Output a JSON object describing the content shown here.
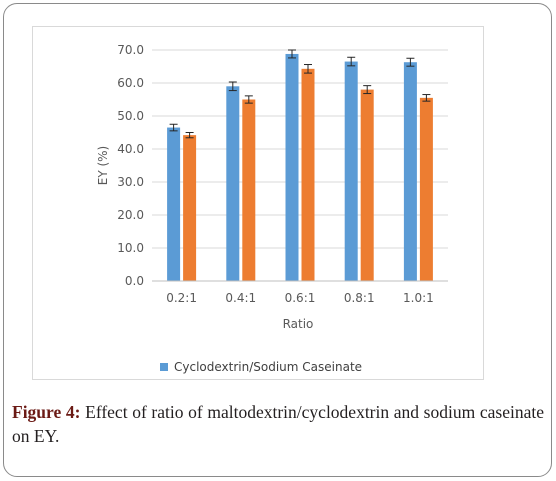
{
  "chart_data": {
    "type": "bar",
    "categories": [
      "0.2:1",
      "0.4:1",
      "0.6:1",
      "0.8:1",
      "1.0:1"
    ],
    "series": [
      {
        "name": "Cyclodextrin/Sodium Caseinate",
        "color": "#5b9bd5",
        "values": [
          46.5,
          59.0,
          68.8,
          66.5,
          66.3
        ],
        "errors": [
          1.0,
          1.3,
          1.2,
          1.3,
          1.2
        ]
      },
      {
        "name": "",
        "color": "#ed7d31",
        "values": [
          44.2,
          55.0,
          64.3,
          58.0,
          55.5
        ],
        "errors": [
          0.8,
          1.1,
          1.3,
          1.2,
          1.0
        ]
      }
    ],
    "xlabel": "Ratio",
    "ylabel": "EY (%)",
    "ylim": [
      0,
      70
    ],
    "yticks": [
      "0.0",
      "10.0",
      "20.0",
      "30.0",
      "40.0",
      "50.0",
      "60.0",
      "70.0"
    ],
    "grid": true,
    "legend_position": "bottom"
  },
  "caption": {
    "label": "Figure 4:",
    "text": " Effect of ratio of maltodextrin/cyclodextrin and sodium caseinate on EY."
  }
}
